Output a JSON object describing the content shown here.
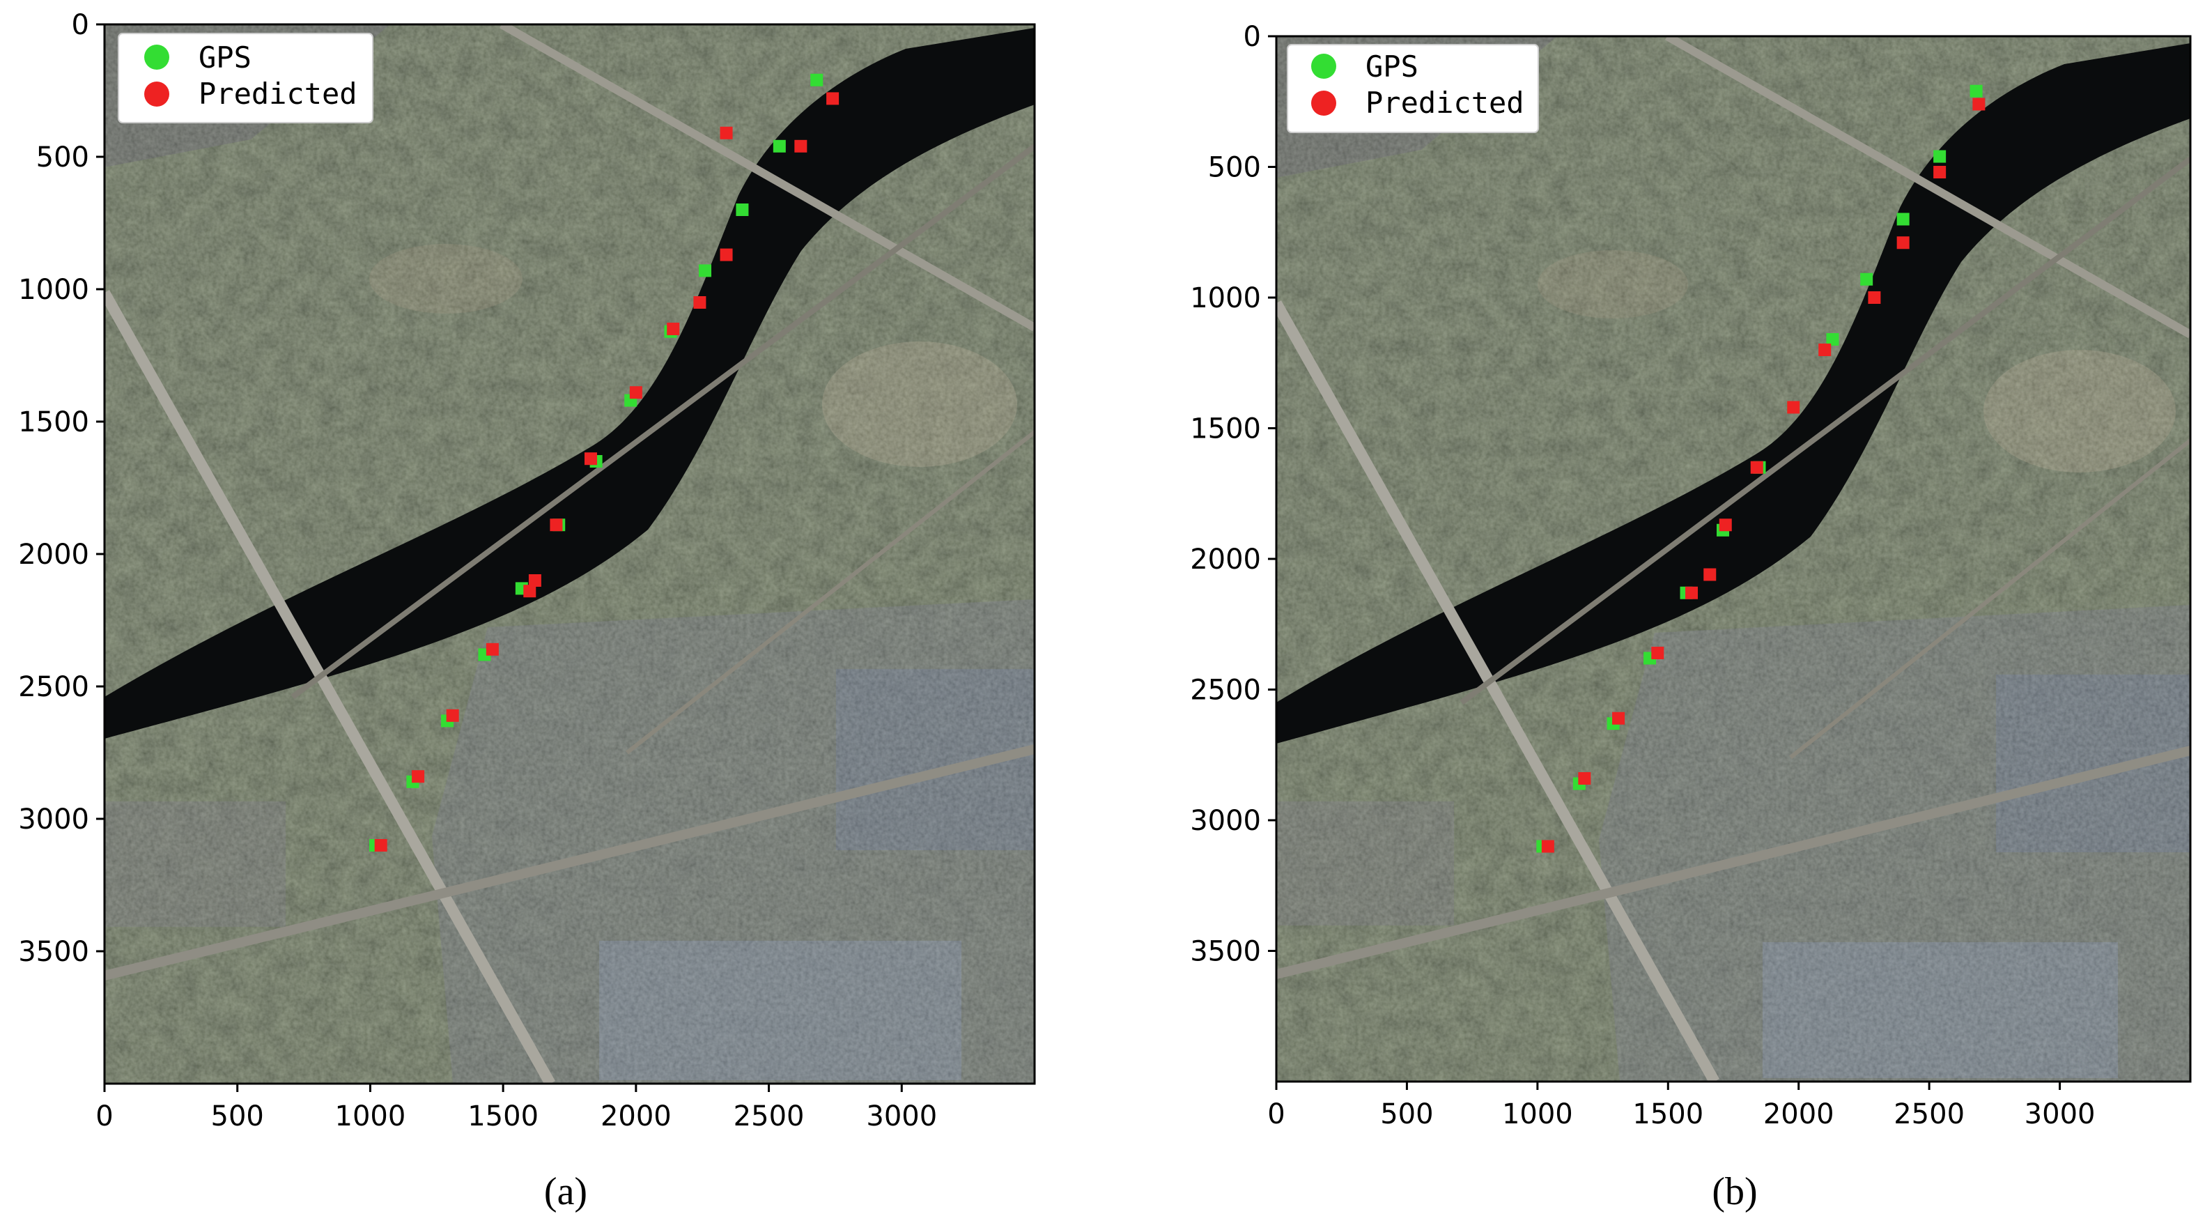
{
  "chart_data": [
    {
      "type": "scatter",
      "caption": "(a)",
      "background": "satellite-image",
      "x_ticks": [
        "0",
        "500",
        "1000",
        "1500",
        "2000",
        "2500",
        "3000"
      ],
      "y_ticks": [
        "0",
        "500",
        "1000",
        "1500",
        "2000",
        "2500",
        "3000",
        "3500"
      ],
      "xlim": [
        0,
        3500
      ],
      "ylim": [
        4000,
        0
      ],
      "legend": {
        "placement": "top-left",
        "entries": [
          "GPS",
          "Predicted"
        ]
      },
      "series": [
        {
          "name": "GPS",
          "color": "#33dd33",
          "points": [
            [
              2680,
              210
            ],
            [
              2540,
              460
            ],
            [
              2400,
              700
            ],
            [
              2260,
              930
            ],
            [
              2130,
              1160
            ],
            [
              1980,
              1420
            ],
            [
              1850,
              1650
            ],
            [
              1710,
              1890
            ],
            [
              1570,
              2130
            ],
            [
              1430,
              2380
            ],
            [
              1290,
              2630
            ],
            [
              1160,
              2860
            ],
            [
              1020,
              3100
            ]
          ]
        },
        {
          "name": "Predicted",
          "color": "#ee2222",
          "points": [
            [
              2740,
              280
            ],
            [
              2340,
              410
            ],
            [
              2620,
              460
            ],
            [
              2340,
              870
            ],
            [
              2240,
              1050
            ],
            [
              2140,
              1150
            ],
            [
              2000,
              1390
            ],
            [
              1830,
              1640
            ],
            [
              1700,
              1890
            ],
            [
              1620,
              2100
            ],
            [
              1600,
              2140
            ],
            [
              1460,
              2360
            ],
            [
              1310,
              2610
            ],
            [
              1180,
              2840
            ],
            [
              1040,
              3100
            ]
          ]
        }
      ]
    },
    {
      "type": "scatter",
      "caption": "(b)",
      "background": "satellite-image",
      "x_ticks": [
        "0",
        "500",
        "1000",
        "1500",
        "2000",
        "2500",
        "3000"
      ],
      "y_ticks": [
        "0",
        "500",
        "1000",
        "1500",
        "2000",
        "2500",
        "3000",
        "3500"
      ],
      "xlim": [
        0,
        3500
      ],
      "ylim": [
        4000,
        0
      ],
      "legend": {
        "placement": "top-left",
        "entries": [
          "GPS",
          "Predicted"
        ]
      },
      "series": [
        {
          "name": "GPS",
          "color": "#33dd33",
          "points": [
            [
              2680,
              210
            ],
            [
              2540,
              460
            ],
            [
              2400,
              700
            ],
            [
              2260,
              930
            ],
            [
              2130,
              1160
            ],
            [
              1980,
              1420
            ],
            [
              1850,
              1650
            ],
            [
              1710,
              1890
            ],
            [
              1570,
              2130
            ],
            [
              1430,
              2380
            ],
            [
              1290,
              2630
            ],
            [
              1160,
              2860
            ],
            [
              1020,
              3100
            ]
          ]
        },
        {
          "name": "Predicted",
          "color": "#ee2222",
          "points": [
            [
              2690,
              260
            ],
            [
              2540,
              520
            ],
            [
              2400,
              790
            ],
            [
              2290,
              1000
            ],
            [
              2100,
              1200
            ],
            [
              1980,
              1420
            ],
            [
              1840,
              1650
            ],
            [
              1720,
              1870
            ],
            [
              1660,
              2060
            ],
            [
              1590,
              2130
            ],
            [
              1460,
              2360
            ],
            [
              1310,
              2610
            ],
            [
              1180,
              2840
            ],
            [
              1040,
              3100
            ]
          ]
        }
      ]
    }
  ]
}
